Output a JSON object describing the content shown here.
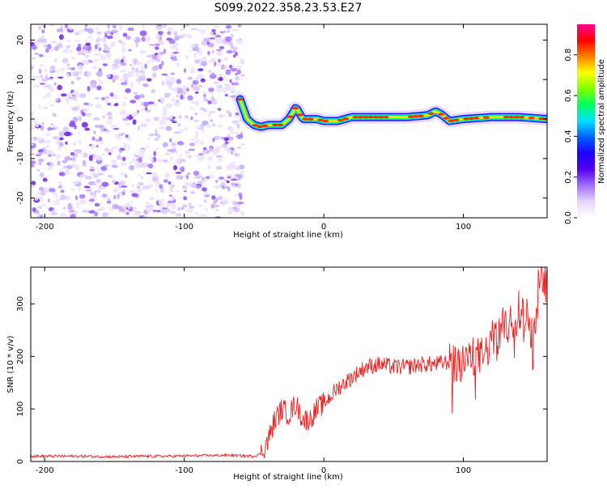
{
  "title": "S099.2022.358.23.53.E27",
  "chart_data": [
    {
      "type": "heatmap",
      "xlabel": "Height of straight line (km)",
      "ylabel": "Frequency (Hz)",
      "xlim": [
        -210,
        160
      ],
      "ylim": [
        -25,
        24
      ],
      "x_ticks": [
        -200,
        -100,
        0,
        100
      ],
      "y_ticks": [
        -20,
        -10,
        0,
        10,
        20
      ],
      "noise_region_x": [
        -210,
        -58
      ],
      "signal_track": {
        "x": [
          -60,
          -55,
          -50,
          -45,
          -40,
          -35,
          -30,
          -25,
          -20,
          -15,
          -10,
          -5,
          0,
          10,
          20,
          40,
          60,
          75,
          80,
          85,
          90,
          100,
          120,
          140,
          160
        ],
        "y": [
          5,
          0,
          -1.5,
          -2,
          -1.5,
          -1.5,
          -1.5,
          0,
          3,
          0,
          0,
          0,
          -0.5,
          -0.5,
          0.5,
          0.5,
          0.5,
          1,
          2,
          1,
          -0.5,
          0,
          0.5,
          0.5,
          0
        ]
      },
      "colorbar": {
        "label": "Normalized spectral amplitude",
        "ticks": [
          0.0,
          0.2,
          0.4,
          0.6,
          0.8
        ],
        "range": [
          0,
          0.95
        ],
        "colors": [
          "#ffffff",
          "#e6d5ff",
          "#a070ff",
          "#5500ee",
          "#1a00ff",
          "#0060ff",
          "#00e0ff",
          "#00ff60",
          "#80ff00",
          "#ffff00",
          "#ff8000",
          "#ff0000",
          "#ff0090"
        ]
      }
    },
    {
      "type": "line",
      "xlabel": "Height of straight line (km)",
      "ylabel": "SNR (10 * v/v)",
      "xlim": [
        -210,
        160
      ],
      "ylim": [
        0,
        370
      ],
      "x_ticks": [
        -200,
        -100,
        0,
        100
      ],
      "y_ticks": [
        0,
        100,
        200,
        300
      ],
      "series": [
        {
          "color": "#ee2222",
          "x": [
            -210,
            -190,
            -170,
            -150,
            -130,
            -110,
            -90,
            -70,
            -50,
            -45,
            -40,
            -35,
            -30,
            -25,
            -20,
            -15,
            -10,
            -5,
            0,
            10,
            20,
            30,
            40,
            50,
            60,
            70,
            80,
            90,
            95,
            100,
            105,
            110,
            115,
            120,
            125,
            130,
            135,
            140,
            145,
            150,
            155,
            160
          ],
          "y": [
            10,
            10,
            10,
            9,
            10,
            10,
            11,
            12,
            10,
            15,
            40,
            80,
            100,
            90,
            110,
            80,
            80,
            100,
            110,
            140,
            160,
            180,
            185,
            180,
            180,
            185,
            185,
            190,
            180,
            180,
            200,
            200,
            200,
            230,
            240,
            250,
            270,
            280,
            280,
            240,
            350,
            350
          ]
        }
      ]
    }
  ]
}
